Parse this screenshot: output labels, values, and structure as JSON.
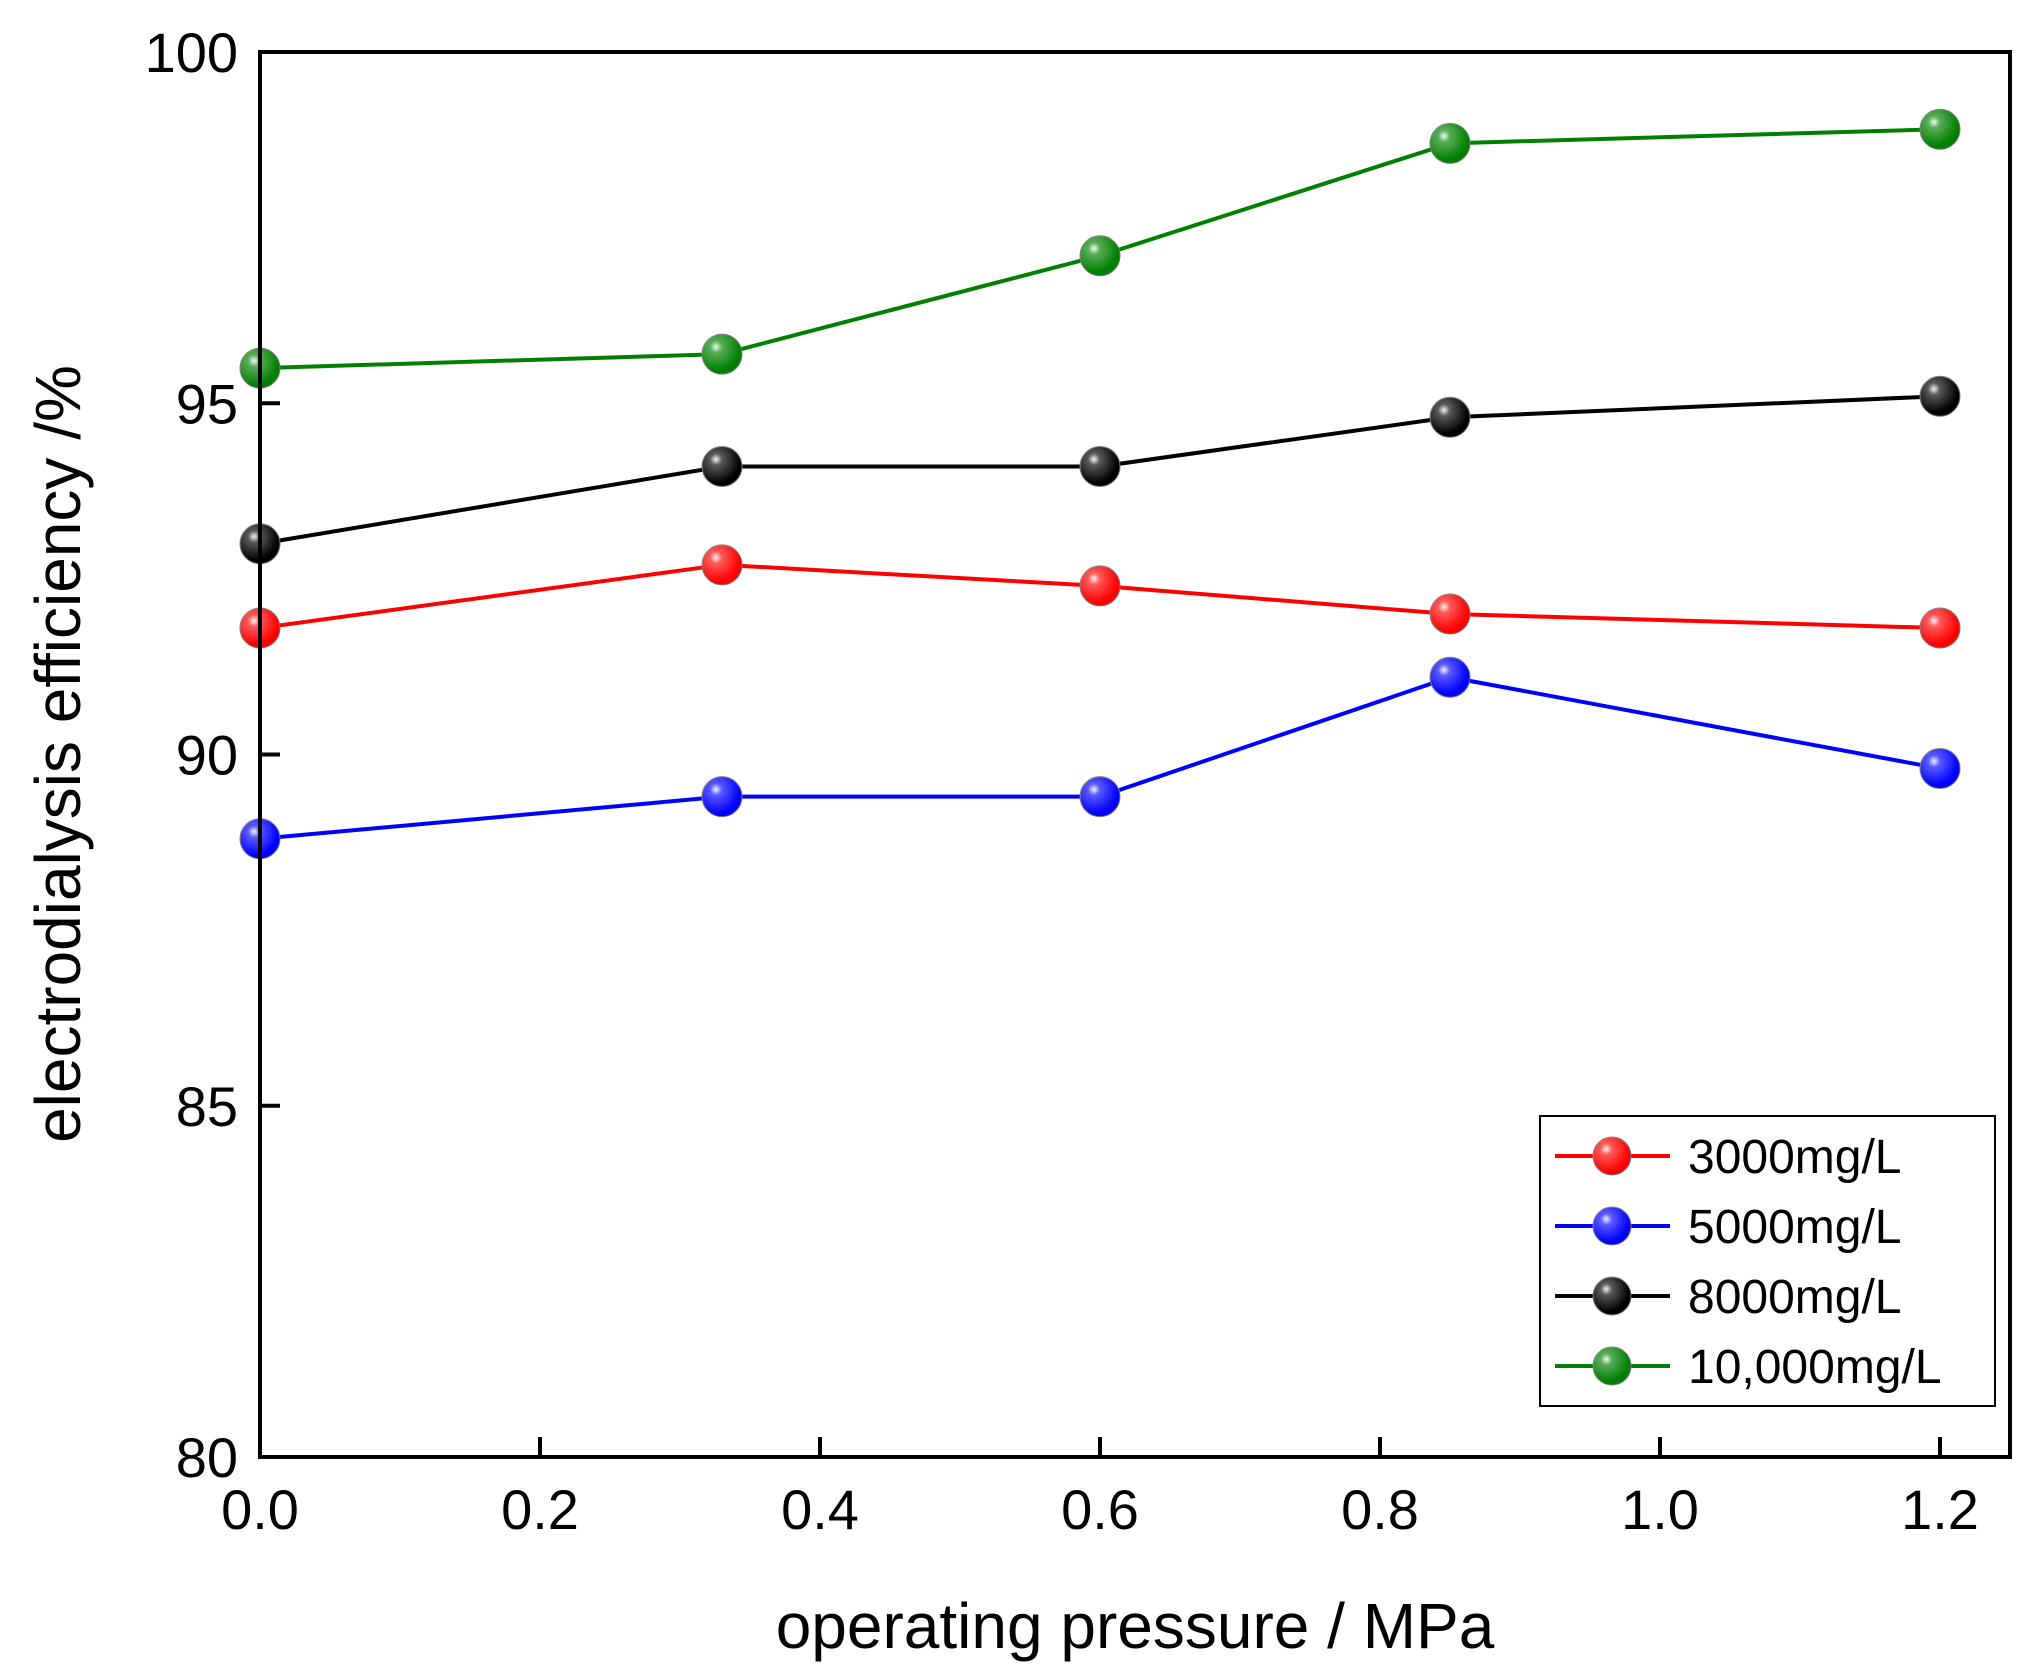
{
  "chart_data": {
    "type": "line",
    "xlabel": "operating pressure / MPa",
    "ylabel": "electrodialysis efficiency /%",
    "xlim": [
      0.0,
      1.25
    ],
    "ylim": [
      80,
      100
    ],
    "xticks": [
      "0.0",
      "0.2",
      "0.4",
      "0.6",
      "0.8",
      "1.0",
      "1.2"
    ],
    "yticks": [
      "80",
      "85",
      "90",
      "95",
      "100"
    ],
    "grid": false,
    "legend_position": "bottom-right",
    "x": [
      0.0,
      0.33,
      0.6,
      0.85,
      1.2
    ],
    "series": [
      {
        "name": "3000mg/L",
        "color": "#ff0000",
        "values": [
          91.8,
          92.7,
          92.4,
          92.0,
          91.8
        ]
      },
      {
        "name": "5000mg/L",
        "color": "#0000ff",
        "values": [
          88.8,
          89.4,
          89.4,
          91.1,
          89.8
        ]
      },
      {
        "name": "8000mg/L",
        "color": "#000000",
        "values": [
          93.0,
          94.1,
          94.1,
          94.8,
          95.1
        ]
      },
      {
        "name": "10,000mg/L",
        "color": "#008000",
        "values": [
          95.5,
          95.7,
          97.1,
          98.7,
          98.9
        ]
      }
    ]
  }
}
